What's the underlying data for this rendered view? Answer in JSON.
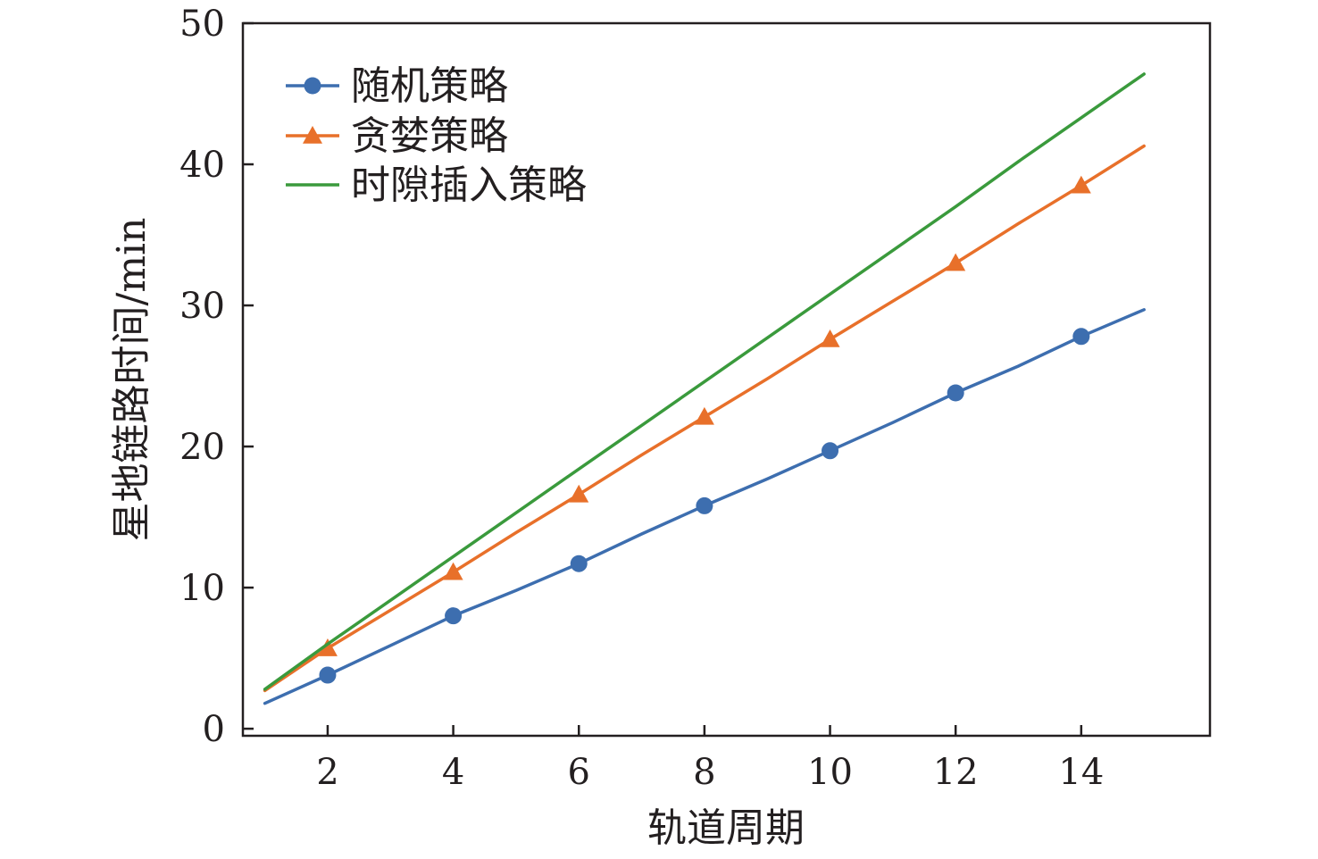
{
  "chart_data": {
    "type": "line",
    "title": "",
    "xlabel": "轨道周期",
    "ylabel": "星地链路时间/min",
    "xlim": [
      0.65,
      16.05
    ],
    "ylim": [
      -0.5,
      50
    ],
    "xticks": [
      2,
      4,
      6,
      8,
      10,
      12,
      14
    ],
    "yticks": [
      0,
      10,
      20,
      30,
      40,
      50
    ],
    "grid": false,
    "legend_position": "top-left",
    "series": [
      {
        "name": "随机策略",
        "color": "#3d6eaf",
        "marker": "circle",
        "x": [
          1,
          2,
          3,
          4,
          5,
          6,
          7,
          8,
          9,
          10,
          11,
          12,
          13,
          14,
          15
        ],
        "y": [
          1.8,
          3.8,
          5.9,
          8.0,
          9.8,
          11.7,
          13.8,
          15.8,
          17.7,
          19.7,
          21.7,
          23.8,
          25.7,
          27.8,
          29.7
        ],
        "marker_x": [
          2,
          4,
          6,
          8,
          10,
          12,
          14
        ]
      },
      {
        "name": "贪婪策略",
        "color": "#e8702a",
        "marker": "triangle",
        "x": [
          1,
          2,
          3,
          4,
          5,
          6,
          7,
          8,
          9,
          10,
          11,
          12,
          13,
          14,
          15
        ],
        "y": [
          2.7,
          5.7,
          8.4,
          11.1,
          13.9,
          16.6,
          19.4,
          22.1,
          24.8,
          27.6,
          30.3,
          33.0,
          35.8,
          38.5,
          41.3
        ],
        "marker_x": [
          2,
          4,
          6,
          8,
          10,
          12,
          14
        ]
      },
      {
        "name": "时隙插入策略",
        "color": "#3a9a3c",
        "marker": "none",
        "x": [
          1,
          2,
          3,
          4,
          5,
          6,
          7,
          8,
          9,
          10,
          11,
          12,
          13,
          14,
          15
        ],
        "y": [
          2.8,
          6.0,
          9.1,
          12.2,
          15.3,
          18.4,
          21.5,
          24.6,
          27.7,
          30.8,
          33.9,
          37.0,
          40.2,
          43.3,
          46.4
        ],
        "marker_x": []
      }
    ]
  }
}
